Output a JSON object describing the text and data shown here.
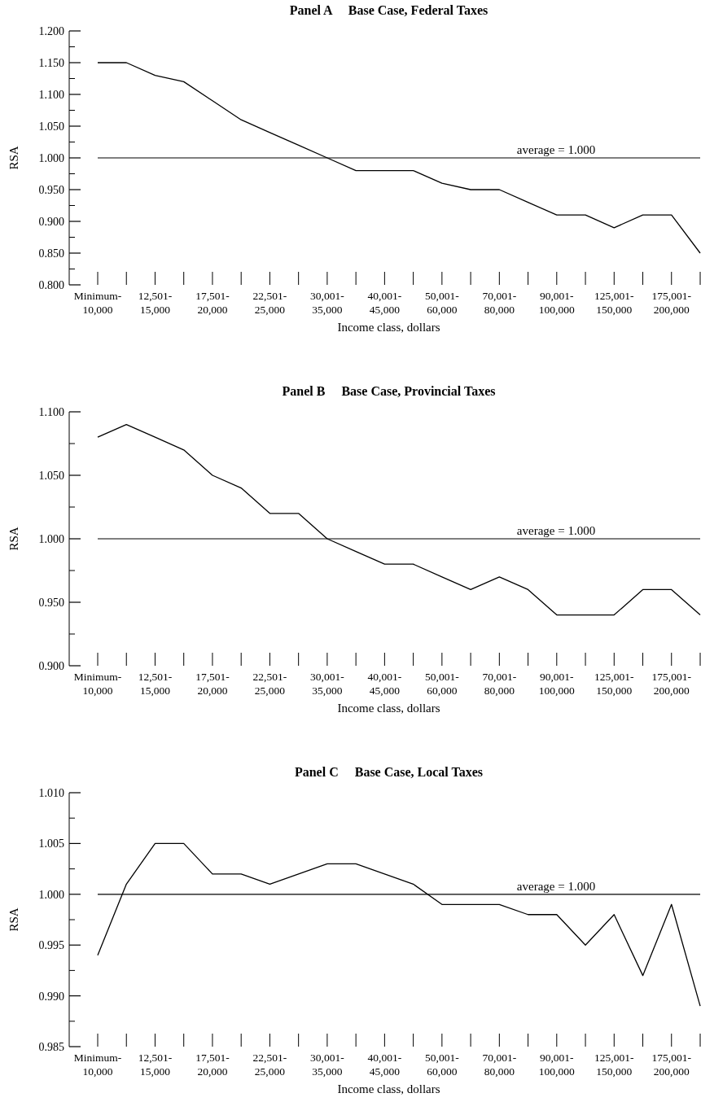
{
  "chart_data": [
    {
      "type": "line",
      "title": "Panel A     Base Case, Federal Taxes",
      "xlabel": "Income class, dollars",
      "ylabel": "RSA",
      "categories": [
        "Minimum-10,000",
        null,
        "12,501-15,000",
        null,
        "17,501-20,000",
        null,
        "22,501-25,000",
        null,
        "30,001-35,000",
        null,
        "40,001-45,000",
        null,
        "50,001-60,000",
        null,
        "70,001-80,000",
        null,
        "90,001-100,000",
        null,
        "125,001-150,000",
        null,
        "175,001-200,000",
        null
      ],
      "series": [
        {
          "color": "#000000",
          "values": [
            1.15,
            1.15,
            1.13,
            1.12,
            1.09,
            1.06,
            1.04,
            1.02,
            1.0,
            0.98,
            0.98,
            0.98,
            0.96,
            0.95,
            0.95,
            0.93,
            0.91,
            0.91,
            0.89,
            0.91,
            0.91,
            0.85
          ]
        }
      ],
      "ylim": [
        0.8,
        1.2
      ],
      "yticks": [
        {
          "value": 0.8,
          "label": "0.800"
        },
        {
          "value": 0.85,
          "label": "0.850"
        },
        {
          "value": 0.9,
          "label": "0.900"
        },
        {
          "value": 0.95,
          "label": "0.950"
        },
        {
          "value": 1.0,
          "label": "1.000"
        },
        {
          "value": 1.05,
          "label": "1.050"
        },
        {
          "value": 1.1,
          "label": "1.100"
        },
        {
          "value": 1.15,
          "label": "1.150"
        },
        {
          "value": 1.2,
          "label": "1.200"
        }
      ],
      "ref_lines": [
        {
          "axis": "y",
          "value": 1.0,
          "label": "average = 1.000"
        }
      ],
      "grid": false
    },
    {
      "type": "line",
      "title": "Panel B     Base Case, Provincial Taxes",
      "xlabel": "Income class, dollars",
      "ylabel": "RSA",
      "categories": [
        "Minimum-10,000",
        null,
        "12,501-15,000",
        null,
        "17,501-20,000",
        null,
        "22,501-25,000",
        null,
        "30,001-35,000",
        null,
        "40,001-45,000",
        null,
        "50,001-60,000",
        null,
        "70,001-80,000",
        null,
        "90,001-100,000",
        null,
        "125,001-150,000",
        null,
        "175,001-200,000",
        null
      ],
      "series": [
        {
          "color": "#000000",
          "values": [
            1.08,
            1.09,
            1.08,
            1.07,
            1.05,
            1.04,
            1.02,
            1.02,
            1.0,
            0.99,
            0.98,
            0.98,
            0.97,
            0.96,
            0.97,
            0.96,
            0.94,
            0.94,
            0.94,
            0.96,
            0.96,
            0.94
          ]
        }
      ],
      "ylim": [
        0.9,
        1.1
      ],
      "yticks": [
        {
          "value": 0.9,
          "label": "0.900"
        },
        {
          "value": 0.95,
          "label": "0.950"
        },
        {
          "value": 1.0,
          "label": "1.000"
        },
        {
          "value": 1.05,
          "label": "1.050"
        },
        {
          "value": 1.1,
          "label": "1.100"
        }
      ],
      "ref_lines": [
        {
          "axis": "y",
          "value": 1.0,
          "label": "average = 1.000"
        }
      ],
      "grid": false
    },
    {
      "type": "line",
      "title": "Panel C     Base Case, Local Taxes",
      "xlabel": "Income class, dollars",
      "ylabel": "RSA",
      "categories": [
        "Minimum-10,000",
        null,
        "12,501-15,000",
        null,
        "17,501-20,000",
        null,
        "22,501-25,000",
        null,
        "30,001-35,000",
        null,
        "40,001-45,000",
        null,
        "50,001-60,000",
        null,
        "70,001-80,000",
        null,
        "90,001-100,000",
        null,
        "125,001-150,000",
        null,
        "175,001-200,000",
        null
      ],
      "series": [
        {
          "color": "#000000",
          "values": [
            0.994,
            1.001,
            1.005,
            1.005,
            1.002,
            1.002,
            1.001,
            1.002,
            1.003,
            1.003,
            1.002,
            1.001,
            0.999,
            0.999,
            0.999,
            0.998,
            0.998,
            0.995,
            0.998,
            0.992,
            0.999,
            0.989
          ]
        }
      ],
      "ylim": [
        0.985,
        1.01
      ],
      "yticks": [
        {
          "value": 0.985,
          "label": "0.985"
        },
        {
          "value": 0.99,
          "label": "0.990"
        },
        {
          "value": 0.995,
          "label": "0.995"
        },
        {
          "value": 1.0,
          "label": "1.000"
        },
        {
          "value": 1.005,
          "label": "1.005"
        },
        {
          "value": 1.01,
          "label": "1.010"
        }
      ],
      "ref_lines": [
        {
          "axis": "y",
          "value": 1.0,
          "label": "average = 1.000"
        }
      ],
      "grid": false
    }
  ]
}
